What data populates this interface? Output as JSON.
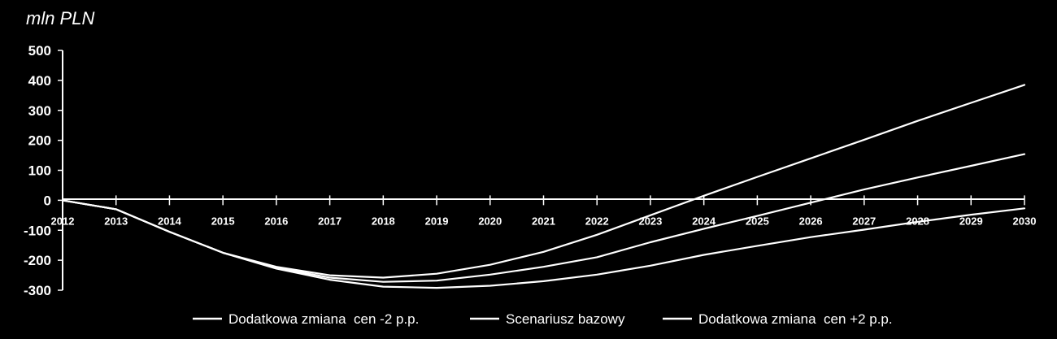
{
  "chart_data": {
    "type": "line",
    "unit_label": "mln PLN",
    "x": [
      2012,
      2013,
      2014,
      2015,
      2016,
      2017,
      2018,
      2019,
      2020,
      2021,
      2022,
      2023,
      2024,
      2025,
      2026,
      2027,
      2028,
      2029,
      2030
    ],
    "x_tick_labels": [
      "2012",
      "2013",
      "2014",
      "2015",
      "2016",
      "2017",
      "2018",
      "2019",
      "2020",
      "2021",
      "2022",
      "2023",
      "2024",
      "2025",
      "2026",
      "2027",
      "2028",
      "2029",
      "2030"
    ],
    "y_tick_labels": [
      "500",
      "400",
      "300",
      "200",
      "100",
      "0",
      "-100",
      "-200",
      "-300"
    ],
    "y_ticks": [
      500,
      400,
      300,
      200,
      100,
      0,
      -100,
      -200,
      -300
    ],
    "ylim": [
      -300,
      500
    ],
    "xlim": [
      2012,
      2030
    ],
    "grid": false,
    "legend_position": "bottom",
    "line_color": "#ffffff",
    "background_color": "#000000",
    "series": [
      {
        "name": "Dodatkowa zmiana  cen -2 p.p.",
        "values": [
          0,
          -30,
          -105,
          -175,
          -222,
          -250,
          -258,
          -245,
          -215,
          -172,
          -115,
          -50,
          15,
          78,
          140,
          202,
          265,
          325,
          385
        ]
      },
      {
        "name": "Scenariusz bazowy",
        "values": [
          0,
          -30,
          -105,
          -175,
          -225,
          -258,
          -272,
          -268,
          -248,
          -222,
          -190,
          -140,
          -95,
          -52,
          -8,
          36,
          76,
          115,
          154
        ]
      },
      {
        "name": "Dodatkowa zmiana  cen +2 p.p.",
        "values": [
          0,
          -30,
          -105,
          -175,
          -228,
          -265,
          -288,
          -292,
          -285,
          -270,
          -248,
          -218,
          -182,
          -152,
          -123,
          -98,
          -72,
          -48,
          -27
        ]
      }
    ]
  }
}
